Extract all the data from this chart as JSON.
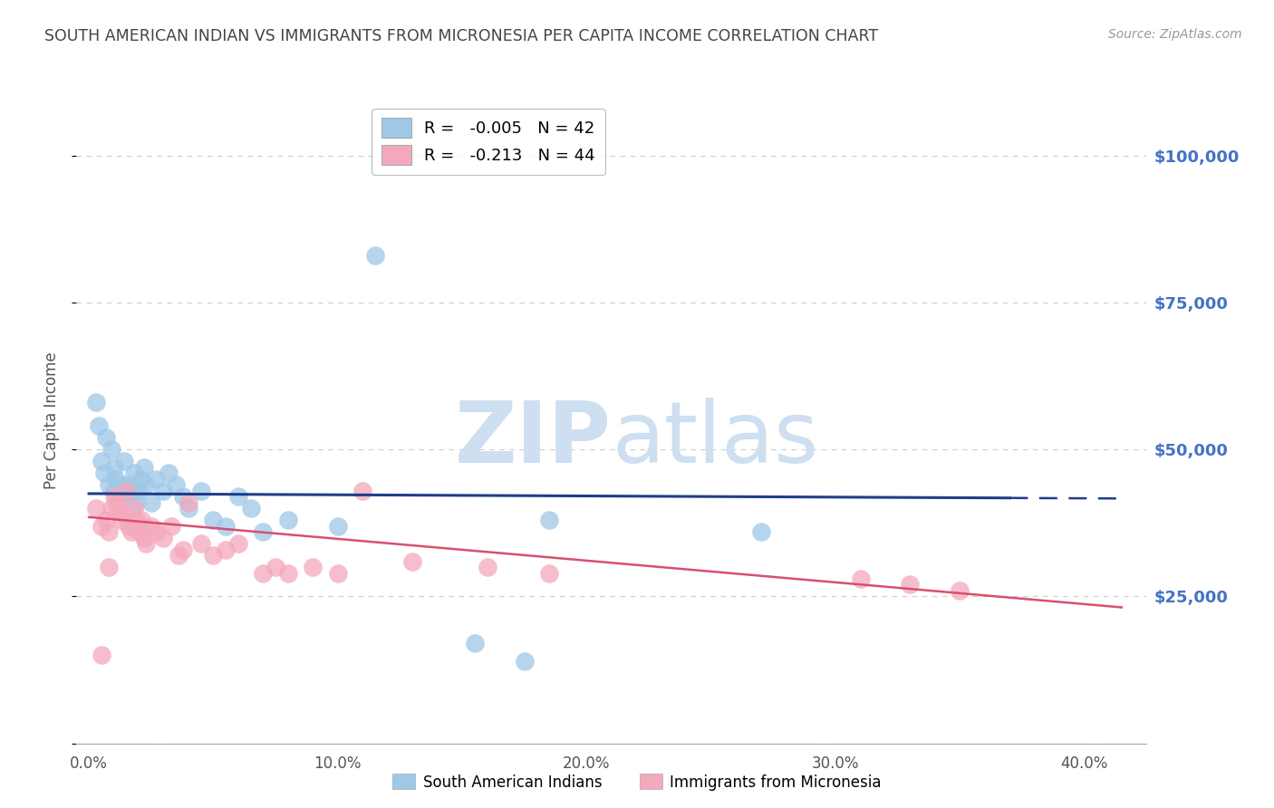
{
  "title": "SOUTH AMERICAN INDIAN VS IMMIGRANTS FROM MICRONESIA PER CAPITA INCOME CORRELATION CHART",
  "source": "Source: ZipAtlas.com",
  "ylabel": "Per Capita Income",
  "xlabel_ticks": [
    "0.0%",
    "10.0%",
    "20.0%",
    "30.0%",
    "40.0%"
  ],
  "xlabel_tick_vals": [
    0.0,
    0.1,
    0.2,
    0.3,
    0.4
  ],
  "ylim": [
    0,
    110000
  ],
  "xlim": [
    -0.005,
    0.425
  ],
  "yticks": [
    0,
    25000,
    50000,
    75000,
    100000
  ],
  "ytick_labels": [
    "",
    "$25,000",
    "$50,000",
    "$75,000",
    "$100,000"
  ],
  "blue_R": -0.005,
  "blue_N": 42,
  "pink_R": -0.213,
  "pink_N": 44,
  "blue_label": "South American Indians",
  "pink_label": "Immigrants from Micronesia",
  "blue_color": "#9ec8e8",
  "pink_color": "#f4a8bc",
  "blue_line_color": "#1f3d8a",
  "pink_line_color": "#d94f6e",
  "blue_scatter_x": [
    0.003,
    0.004,
    0.005,
    0.006,
    0.007,
    0.008,
    0.009,
    0.01,
    0.01,
    0.011,
    0.012,
    0.013,
    0.014,
    0.015,
    0.016,
    0.017,
    0.018,
    0.019,
    0.02,
    0.021,
    0.022,
    0.023,
    0.025,
    0.027,
    0.03,
    0.032,
    0.035,
    0.038,
    0.04,
    0.045,
    0.05,
    0.055,
    0.06,
    0.065,
    0.07,
    0.08,
    0.1,
    0.115,
    0.185,
    0.27,
    0.155,
    0.175
  ],
  "blue_scatter_y": [
    58000,
    54000,
    48000,
    46000,
    52000,
    44000,
    50000,
    47000,
    43000,
    45000,
    42000,
    44000,
    48000,
    42000,
    44000,
    43000,
    46000,
    41000,
    43000,
    45000,
    47000,
    44000,
    41000,
    45000,
    43000,
    46000,
    44000,
    42000,
    40000,
    43000,
    38000,
    37000,
    42000,
    40000,
    36000,
    38000,
    37000,
    83000,
    38000,
    36000,
    17000,
    14000
  ],
  "pink_scatter_x": [
    0.003,
    0.005,
    0.007,
    0.008,
    0.009,
    0.01,
    0.011,
    0.012,
    0.013,
    0.014,
    0.015,
    0.016,
    0.017,
    0.018,
    0.019,
    0.02,
    0.021,
    0.022,
    0.023,
    0.025,
    0.027,
    0.03,
    0.033,
    0.036,
    0.038,
    0.04,
    0.045,
    0.05,
    0.055,
    0.06,
    0.07,
    0.075,
    0.08,
    0.09,
    0.1,
    0.11,
    0.13,
    0.16,
    0.185,
    0.31,
    0.33,
    0.35,
    0.005,
    0.008
  ],
  "pink_scatter_y": [
    40000,
    37000,
    38000,
    36000,
    40000,
    42000,
    41000,
    40000,
    38000,
    39000,
    43000,
    37000,
    36000,
    40000,
    38000,
    36000,
    38000,
    35000,
    34000,
    37000,
    36000,
    35000,
    37000,
    32000,
    33000,
    41000,
    34000,
    32000,
    33000,
    34000,
    29000,
    30000,
    29000,
    30000,
    29000,
    43000,
    31000,
    30000,
    29000,
    28000,
    27000,
    26000,
    15000,
    30000
  ],
  "background_color": "#ffffff",
  "grid_color": "#cccccc",
  "title_color": "#444444",
  "axis_label_color": "#555555",
  "ytick_label_color": "#4472c4",
  "blue_line_intercept": 42500,
  "blue_line_slope": -2000,
  "pink_line_intercept": 38500,
  "pink_line_slope": -37000
}
